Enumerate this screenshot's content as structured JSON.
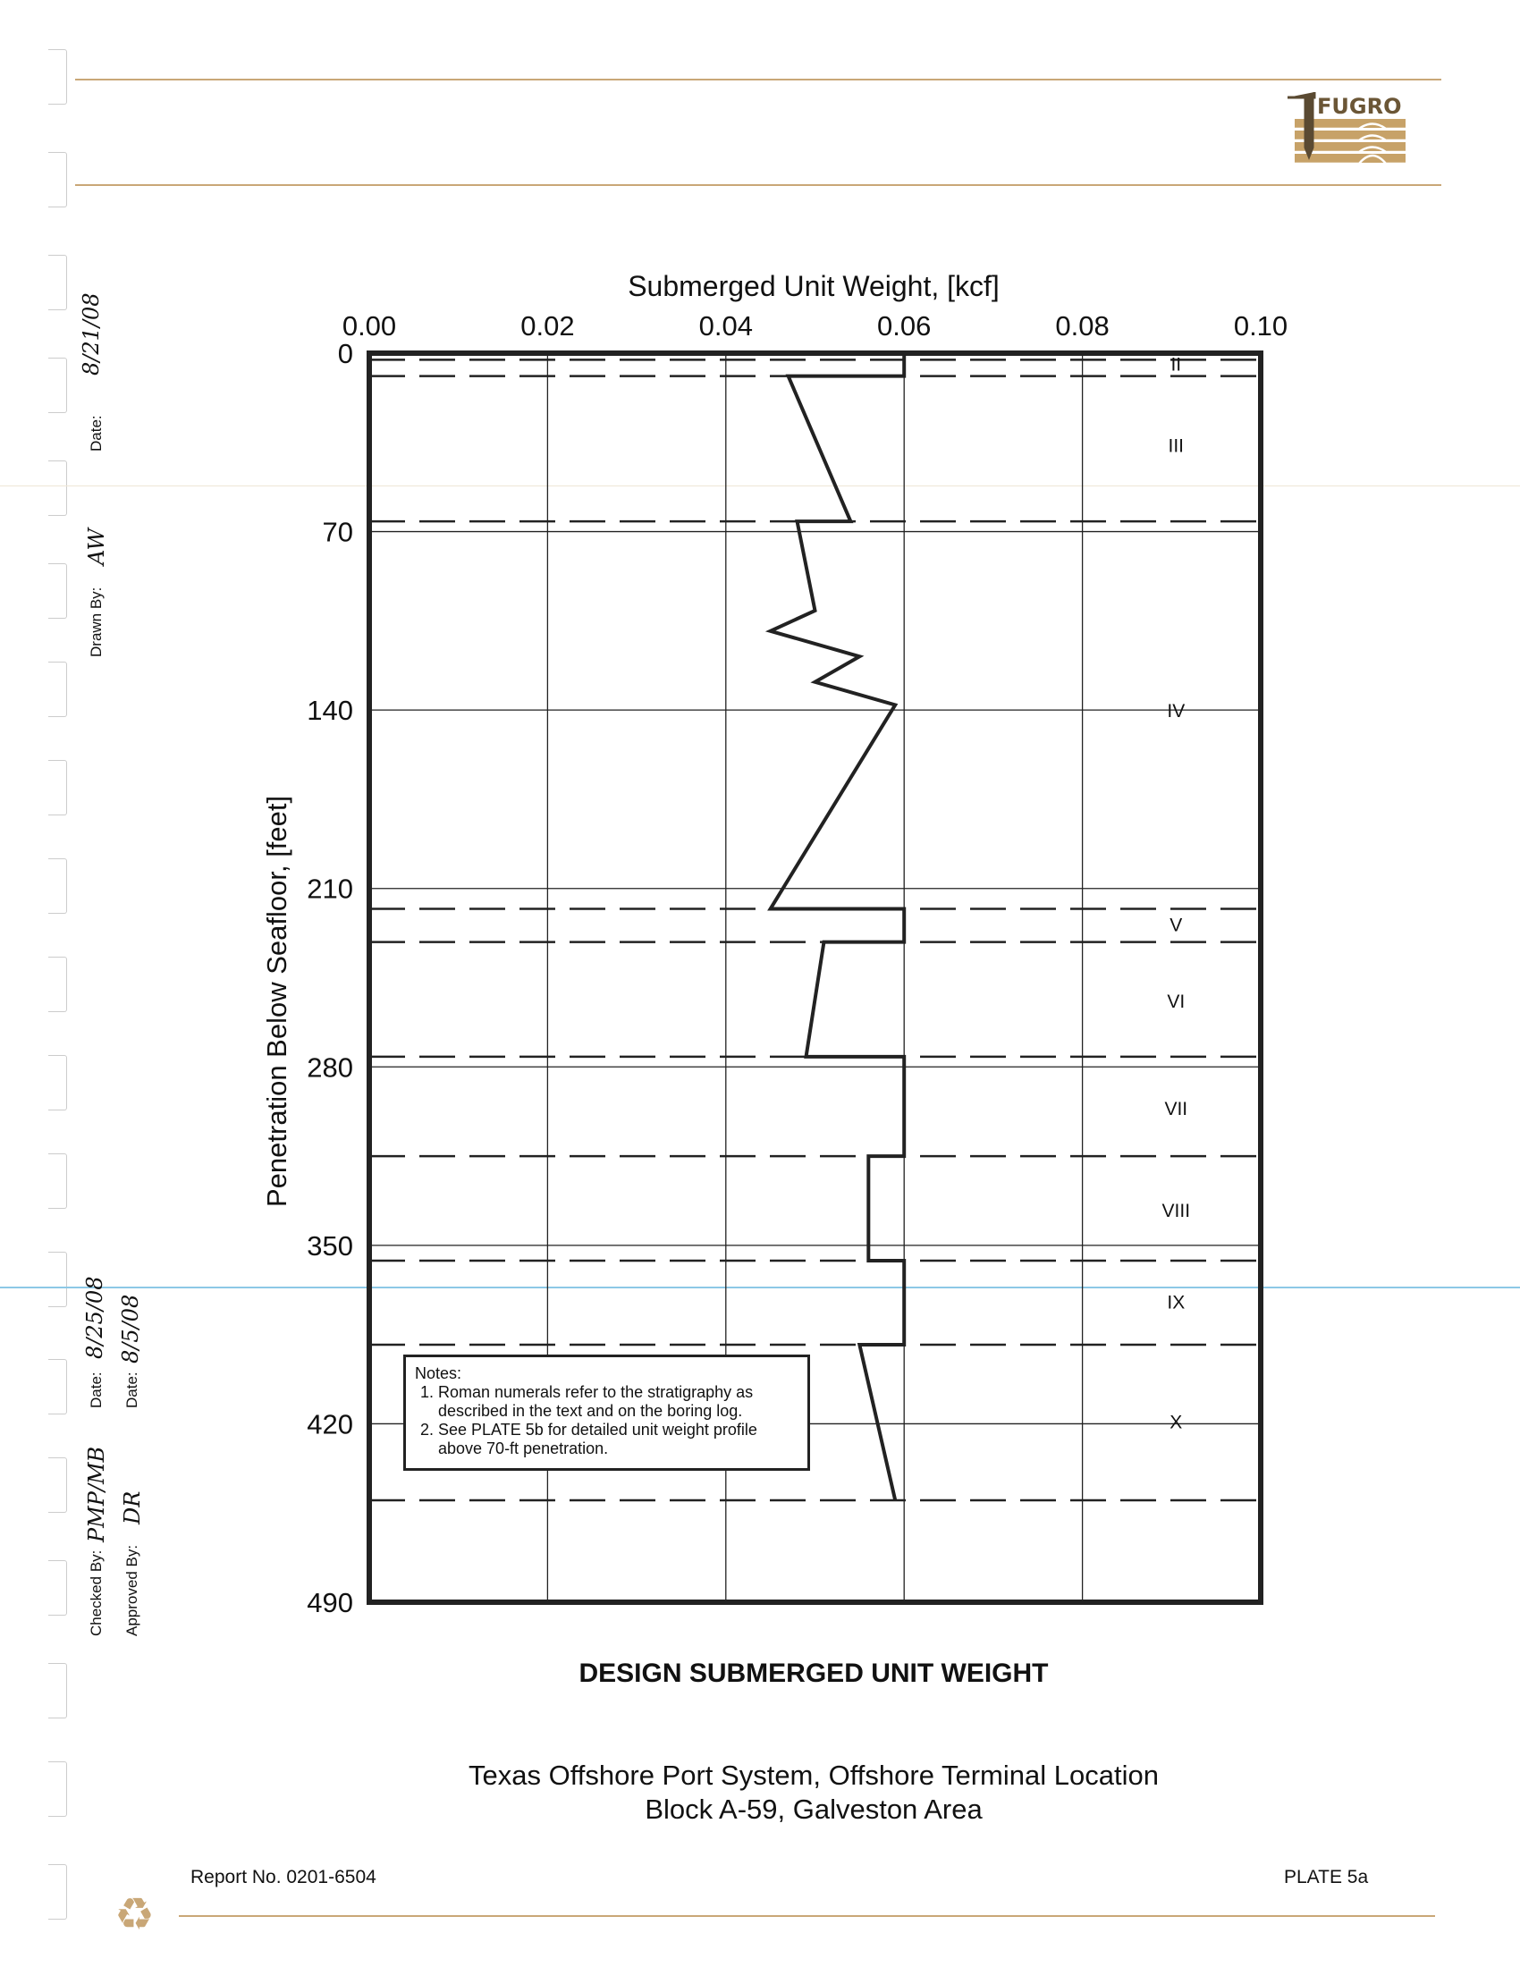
{
  "header": {
    "logo_text": "FUGRO"
  },
  "signoff": {
    "drawn_by_label": "Drawn By:",
    "drawn_by": "AW",
    "drawn_date_label": "Date:",
    "drawn_date": "8/21/08",
    "checked_by_label": "Checked By:",
    "checked_by": "PMP/MB",
    "checked_date_label": "Date:",
    "checked_date": "8/25/08",
    "approved_by_label": "Approved By:",
    "approved_by": "DR",
    "approved_date_label": "Date:",
    "approved_date": "8/5/08"
  },
  "chart_data": {
    "type": "line",
    "title": "Submerged Unit Weight, [kcf]",
    "xlabel": "Submerged Unit Weight, [kcf]",
    "ylabel": "Penetration Below Seafloor, [feet]",
    "xlim": [
      0,
      0.1
    ],
    "ylim": [
      0,
      490
    ],
    "y_inverted": true,
    "x_axis_position": "top",
    "x_ticks": [
      "0.00",
      "0.02",
      "0.04",
      "0.06",
      "0.08",
      "0.10"
    ],
    "y_ticks": [
      "0",
      "70",
      "140",
      "210",
      "280",
      "350",
      "420",
      "490"
    ],
    "grid": true,
    "series": [
      {
        "points": [
          [
            0.045,
            0
          ],
          [
            0.06,
            0
          ],
          [
            0.06,
            9
          ],
          [
            0.047,
            9
          ],
          [
            0.054,
            66
          ],
          [
            0.048,
            66
          ],
          [
            0.05,
            101
          ],
          [
            0.045,
            109
          ],
          [
            0.055,
            119
          ],
          [
            0.05,
            129
          ],
          [
            0.059,
            138
          ],
          [
            0.045,
            218
          ],
          [
            0.06,
            218
          ],
          [
            0.06,
            231
          ],
          [
            0.051,
            231
          ],
          [
            0.049,
            276
          ],
          [
            0.06,
            276
          ],
          [
            0.06,
            315
          ],
          [
            0.056,
            315
          ],
          [
            0.056,
            356
          ],
          [
            0.06,
            356
          ],
          [
            0.06,
            389
          ],
          [
            0.055,
            389
          ],
          [
            0.059,
            450
          ]
        ]
      }
    ],
    "layer_boundaries": [
      2.6,
      9,
      66,
      218,
      231,
      276,
      315,
      356,
      389,
      450
    ],
    "layer_labels": [
      {
        "label": "II",
        "depth": 4
      },
      {
        "label": "III",
        "depth": 36
      },
      {
        "label": "IV",
        "depth": 140
      },
      {
        "label": "V",
        "depth": 224
      },
      {
        "label": "VI",
        "depth": 254
      },
      {
        "label": "VII",
        "depth": 296
      },
      {
        "label": "VIII",
        "depth": 336
      },
      {
        "label": "IX",
        "depth": 372
      },
      {
        "label": "X",
        "depth": 419
      }
    ]
  },
  "notes": {
    "heading": "Notes:",
    "items": [
      "Roman numerals refer to the stratigraphy as described in the text and on the boring log.",
      "See PLATE 5b for detailed unit weight profile above 70-ft penetration."
    ]
  },
  "caption": "DESIGN SUBMERGED UNIT WEIGHT",
  "location": {
    "line1": "Texas Offshore Port System, Offshore Terminal Location",
    "line2": "Block A-59, Galveston Area"
  },
  "footer": {
    "report": "Report No. 0201-6504",
    "plate": "PLATE 5a"
  },
  "colors": {
    "rule": "#c9a777",
    "logo": "#c7a268",
    "logo_dark": "#5a4a32",
    "plot": "#222222",
    "scan_line": "#8cc8e6"
  }
}
